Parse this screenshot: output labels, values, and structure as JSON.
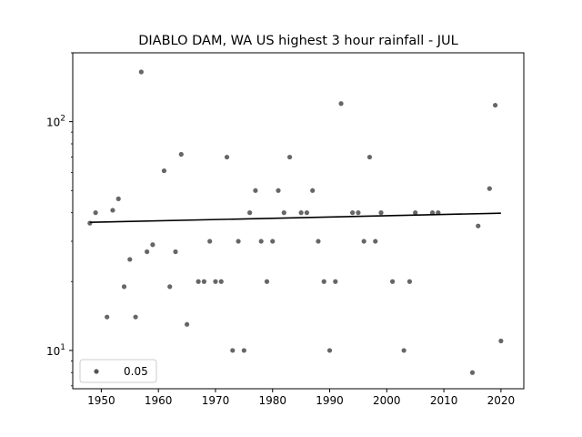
{
  "chart_data": {
    "type": "scatter",
    "title": "DIABLO DAM, WA US highest 3 hour rainfall - JUL",
    "xlabel": "",
    "ylabel": "",
    "yscale": "log",
    "xlim": [
      1945,
      2024
    ],
    "ylim": [
      6.8,
      200
    ],
    "xticks": [
      1950,
      1960,
      1970,
      1980,
      1990,
      2000,
      2010,
      2020
    ],
    "xtick_labels": [
      "1950",
      "1960",
      "1970",
      "1980",
      "1990",
      "2000",
      "2010",
      "2020"
    ],
    "yticks": [
      10,
      100
    ],
    "ytick_labels": [
      "10",
      "10",
      "2"
    ],
    "ytick_base": "10",
    "ytick_exponents": [
      "1",
      "2"
    ],
    "legend": {
      "label": "0.05",
      "location": "lower-left"
    },
    "colors": {
      "points": "#555555",
      "trend": "#000000"
    },
    "points": [
      {
        "x": 1948,
        "y": 36
      },
      {
        "x": 1949,
        "y": 40
      },
      {
        "x": 1951,
        "y": 14
      },
      {
        "x": 1952,
        "y": 41
      },
      {
        "x": 1953,
        "y": 46
      },
      {
        "x": 1954,
        "y": 19
      },
      {
        "x": 1955,
        "y": 25
      },
      {
        "x": 1956,
        "y": 14
      },
      {
        "x": 1957,
        "y": 165
      },
      {
        "x": 1958,
        "y": 27
      },
      {
        "x": 1959,
        "y": 29
      },
      {
        "x": 1961,
        "y": 61
      },
      {
        "x": 1962,
        "y": 19
      },
      {
        "x": 1963,
        "y": 27
      },
      {
        "x": 1964,
        "y": 72
      },
      {
        "x": 1965,
        "y": 13
      },
      {
        "x": 1967,
        "y": 20
      },
      {
        "x": 1968,
        "y": 20
      },
      {
        "x": 1969,
        "y": 30
      },
      {
        "x": 1970,
        "y": 20
      },
      {
        "x": 1971,
        "y": 20
      },
      {
        "x": 1972,
        "y": 70
      },
      {
        "x": 1973,
        "y": 10
      },
      {
        "x": 1974,
        "y": 30
      },
      {
        "x": 1975,
        "y": 10
      },
      {
        "x": 1976,
        "y": 40
      },
      {
        "x": 1977,
        "y": 50
      },
      {
        "x": 1978,
        "y": 30
      },
      {
        "x": 1979,
        "y": 20
      },
      {
        "x": 1980,
        "y": 30
      },
      {
        "x": 1981,
        "y": 50
      },
      {
        "x": 1982,
        "y": 40
      },
      {
        "x": 1983,
        "y": 70
      },
      {
        "x": 1985,
        "y": 40
      },
      {
        "x": 1986,
        "y": 40
      },
      {
        "x": 1987,
        "y": 50
      },
      {
        "x": 1988,
        "y": 30
      },
      {
        "x": 1989,
        "y": 20
      },
      {
        "x": 1990,
        "y": 10
      },
      {
        "x": 1991,
        "y": 20
      },
      {
        "x": 1992,
        "y": 120
      },
      {
        "x": 1994,
        "y": 40
      },
      {
        "x": 1995,
        "y": 40
      },
      {
        "x": 1996,
        "y": 30
      },
      {
        "x": 1997,
        "y": 70
      },
      {
        "x": 1998,
        "y": 30
      },
      {
        "x": 1999,
        "y": 40
      },
      {
        "x": 2001,
        "y": 20
      },
      {
        "x": 2003,
        "y": 10
      },
      {
        "x": 2004,
        "y": 20
      },
      {
        "x": 2005,
        "y": 40
      },
      {
        "x": 2008,
        "y": 40
      },
      {
        "x": 2009,
        "y": 40
      },
      {
        "x": 2015,
        "y": 8
      },
      {
        "x": 2016,
        "y": 35
      },
      {
        "x": 2018,
        "y": 51
      },
      {
        "x": 2019,
        "y": 118
      },
      {
        "x": 2020,
        "y": 11
      }
    ],
    "trend_line": {
      "x": [
        1948,
        2020
      ],
      "y": [
        36.3,
        39.8
      ]
    }
  }
}
